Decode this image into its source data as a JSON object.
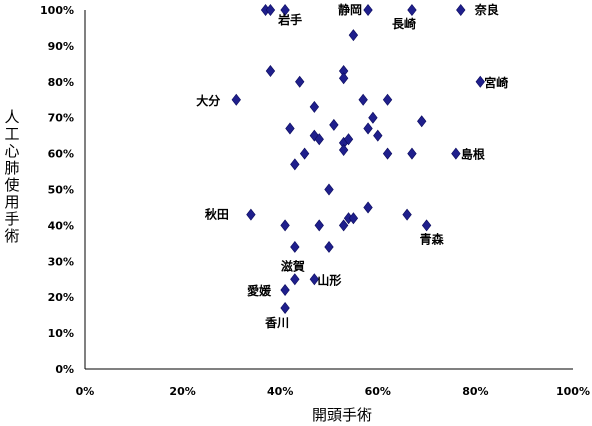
{
  "chart_data": {
    "type": "scatter",
    "xlabel": "開頭手術",
    "ylabel": "人工心肺使用手術",
    "xlim": [
      0,
      1
    ],
    "ylim": [
      0,
      1
    ],
    "x_ticks": [
      "0%",
      "20%",
      "40%",
      "60%",
      "80%",
      "100%"
    ],
    "y_ticks": [
      "0%",
      "10%",
      "20%",
      "30%",
      "40%",
      "50%",
      "60%",
      "70%",
      "80%",
      "90%",
      "100%"
    ],
    "marker_color": "#1f1f8c",
    "points": [
      {
        "x": 0.37,
        "y": 1.0
      },
      {
        "x": 0.38,
        "y": 1.0
      },
      {
        "x": 0.41,
        "y": 1.0,
        "label": "岩手"
      },
      {
        "x": 0.58,
        "y": 1.0,
        "label": "静岡"
      },
      {
        "x": 0.67,
        "y": 1.0,
        "label": "長崎"
      },
      {
        "x": 0.77,
        "y": 1.0,
        "label": "奈良"
      },
      {
        "x": 0.55,
        "y": 0.93
      },
      {
        "x": 0.38,
        "y": 0.83
      },
      {
        "x": 0.44,
        "y": 0.8
      },
      {
        "x": 0.53,
        "y": 0.83
      },
      {
        "x": 0.53,
        "y": 0.81
      },
      {
        "x": 0.81,
        "y": 0.8,
        "label": "宮崎"
      },
      {
        "x": 0.31,
        "y": 0.75,
        "label": "大分"
      },
      {
        "x": 0.47,
        "y": 0.73
      },
      {
        "x": 0.57,
        "y": 0.75
      },
      {
        "x": 0.62,
        "y": 0.75
      },
      {
        "x": 0.59,
        "y": 0.7
      },
      {
        "x": 0.51,
        "y": 0.68
      },
      {
        "x": 0.69,
        "y": 0.69
      },
      {
        "x": 0.42,
        "y": 0.67
      },
      {
        "x": 0.47,
        "y": 0.65
      },
      {
        "x": 0.48,
        "y": 0.64
      },
      {
        "x": 0.58,
        "y": 0.67
      },
      {
        "x": 0.6,
        "y": 0.65
      },
      {
        "x": 0.53,
        "y": 0.63
      },
      {
        "x": 0.54,
        "y": 0.64
      },
      {
        "x": 0.53,
        "y": 0.61
      },
      {
        "x": 0.45,
        "y": 0.6
      },
      {
        "x": 0.62,
        "y": 0.6
      },
      {
        "x": 0.67,
        "y": 0.6
      },
      {
        "x": 0.76,
        "y": 0.6,
        "label": "島根"
      },
      {
        "x": 0.43,
        "y": 0.57
      },
      {
        "x": 0.5,
        "y": 0.5
      },
      {
        "x": 0.34,
        "y": 0.43,
        "label": "秋田"
      },
      {
        "x": 0.58,
        "y": 0.45
      },
      {
        "x": 0.66,
        "y": 0.43
      },
      {
        "x": 0.41,
        "y": 0.4
      },
      {
        "x": 0.48,
        "y": 0.4
      },
      {
        "x": 0.53,
        "y": 0.4
      },
      {
        "x": 0.54,
        "y": 0.42
      },
      {
        "x": 0.55,
        "y": 0.42
      },
      {
        "x": 0.7,
        "y": 0.4,
        "label": "青森"
      },
      {
        "x": 0.43,
        "y": 0.34
      },
      {
        "x": 0.5,
        "y": 0.34
      },
      {
        "x": 0.43,
        "y": 0.25,
        "label": "滋賀"
      },
      {
        "x": 0.47,
        "y": 0.25,
        "label": "山形"
      },
      {
        "x": 0.41,
        "y": 0.22,
        "label": "愛媛"
      },
      {
        "x": 0.41,
        "y": 0.17,
        "label": "香川"
      }
    ]
  }
}
